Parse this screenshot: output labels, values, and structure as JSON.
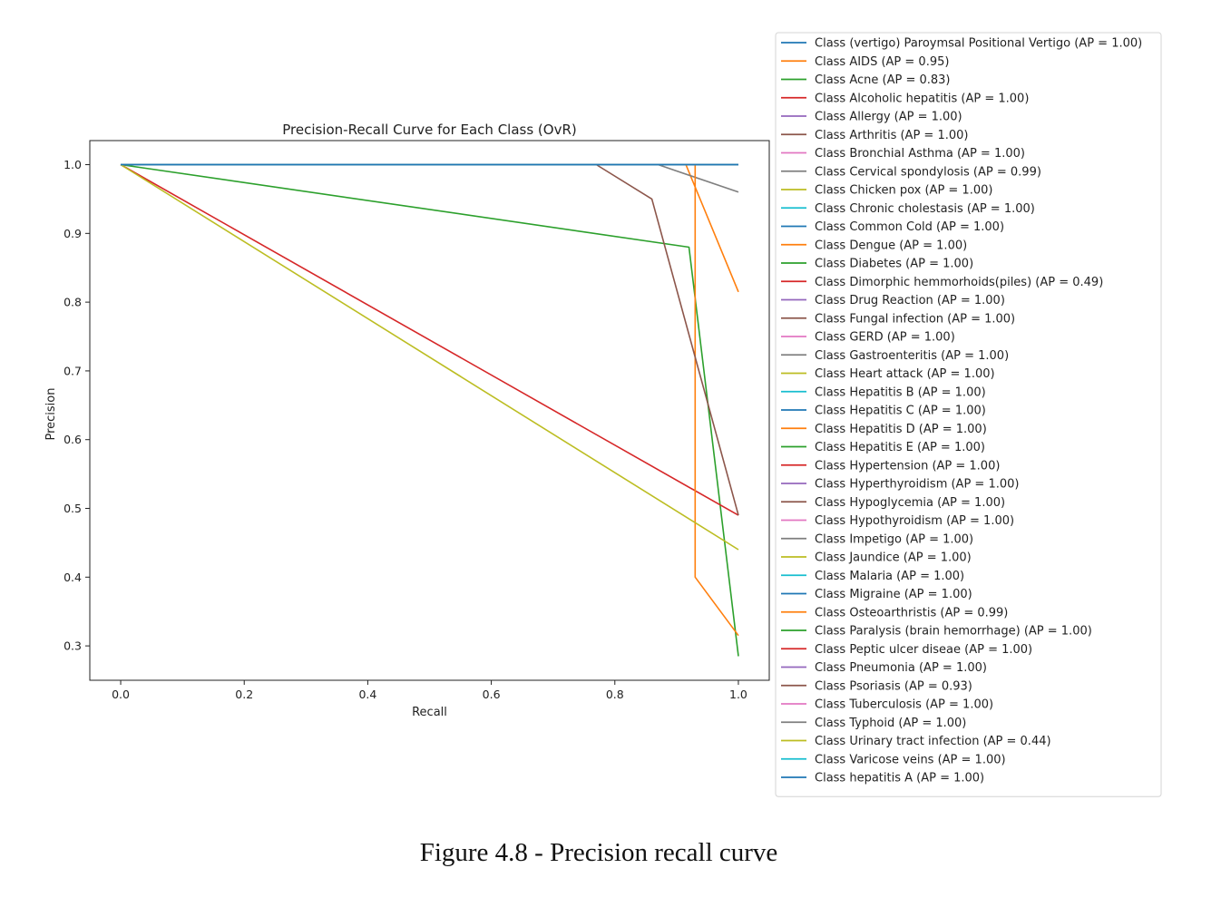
{
  "chart_data": {
    "type": "line",
    "title": "Precision-Recall Curve for Each Class (OvR)",
    "xlabel": "Recall",
    "ylabel": "Precision",
    "xlim": [
      -0.05,
      1.05
    ],
    "ylim": [
      0.25,
      1.035
    ],
    "xticks": [
      "0.0",
      "0.2",
      "0.4",
      "0.6",
      "0.8",
      "1.0"
    ],
    "yticks": [
      "0.3",
      "0.4",
      "0.5",
      "0.6",
      "0.7",
      "0.8",
      "0.9",
      "1.0"
    ],
    "grid": false,
    "legend_position": "right, outside plot",
    "colors": [
      "#1f77b4",
      "#ff7f0e",
      "#2ca02c",
      "#d62728",
      "#9467bd",
      "#8c564b",
      "#e377c2",
      "#7f7f7f",
      "#bcbd22",
      "#17becf"
    ],
    "series": [
      {
        "name": "Class (vertigo) Paroymsal  Positional Vertigo (AP = 1.00)",
        "x": [
          0,
          1
        ],
        "y": [
          1,
          1
        ]
      },
      {
        "name": "Class AIDS (AP = 0.95)",
        "x": [
          0,
          0.915,
          1
        ],
        "y": [
          1,
          1,
          0.815
        ]
      },
      {
        "name": "Class Acne (AP = 0.83)",
        "x": [
          0,
          0.92,
          1
        ],
        "y": [
          1,
          0.88,
          0.285
        ]
      },
      {
        "name": "Class Alcoholic hepatitis (AP = 1.00)",
        "x": [
          0,
          1
        ],
        "y": [
          1,
          1
        ]
      },
      {
        "name": "Class Allergy (AP = 1.00)",
        "x": [
          0,
          1
        ],
        "y": [
          1,
          1
        ]
      },
      {
        "name": "Class Arthritis (AP = 1.00)",
        "x": [
          0,
          1
        ],
        "y": [
          1,
          1
        ]
      },
      {
        "name": "Class Bronchial Asthma (AP = 1.00)",
        "x": [
          0,
          1
        ],
        "y": [
          1,
          1
        ]
      },
      {
        "name": "Class Cervical spondylosis (AP = 0.99)",
        "x": [
          0,
          0.87,
          1
        ],
        "y": [
          1,
          1,
          0.96
        ]
      },
      {
        "name": "Class Chicken pox (AP = 1.00)",
        "x": [
          0,
          1
        ],
        "y": [
          1,
          1
        ]
      },
      {
        "name": "Class Chronic cholestasis (AP = 1.00)",
        "x": [
          0,
          1
        ],
        "y": [
          1,
          1
        ]
      },
      {
        "name": "Class Common Cold (AP = 1.00)",
        "x": [
          0,
          1
        ],
        "y": [
          1,
          1
        ]
      },
      {
        "name": "Class Dengue (AP = 1.00)",
        "x": [
          0,
          1
        ],
        "y": [
          1,
          1
        ]
      },
      {
        "name": "Class Diabetes  (AP = 1.00)",
        "x": [
          0,
          1
        ],
        "y": [
          1,
          1
        ]
      },
      {
        "name": "Class Dimorphic hemmorhoids(piles) (AP = 0.49)",
        "x": [
          0,
          1
        ],
        "y": [
          1,
          0.49
        ]
      },
      {
        "name": "Class Drug Reaction (AP = 1.00)",
        "x": [
          0,
          1
        ],
        "y": [
          1,
          1
        ]
      },
      {
        "name": "Class Fungal infection (AP = 1.00)",
        "x": [
          0,
          1
        ],
        "y": [
          1,
          1
        ]
      },
      {
        "name": "Class GERD (AP = 1.00)",
        "x": [
          0,
          1
        ],
        "y": [
          1,
          1
        ]
      },
      {
        "name": "Class Gastroenteritis (AP = 1.00)",
        "x": [
          0,
          1
        ],
        "y": [
          1,
          1
        ]
      },
      {
        "name": "Class Heart attack (AP = 1.00)",
        "x": [
          0,
          1
        ],
        "y": [
          1,
          1
        ]
      },
      {
        "name": "Class Hepatitis B (AP = 1.00)",
        "x": [
          0,
          1
        ],
        "y": [
          1,
          1
        ]
      },
      {
        "name": "Class Hepatitis C (AP = 1.00)",
        "x": [
          0,
          1
        ],
        "y": [
          1,
          1
        ]
      },
      {
        "name": "Class Hepatitis D (AP = 1.00)",
        "x": [
          0,
          1
        ],
        "y": [
          1,
          1
        ]
      },
      {
        "name": "Class Hepatitis E (AP = 1.00)",
        "x": [
          0,
          1
        ],
        "y": [
          1,
          1
        ]
      },
      {
        "name": "Class Hypertension  (AP = 1.00)",
        "x": [
          0,
          1
        ],
        "y": [
          1,
          1
        ]
      },
      {
        "name": "Class Hyperthyroidism (AP = 1.00)",
        "x": [
          0,
          1
        ],
        "y": [
          1,
          1
        ]
      },
      {
        "name": "Class Hypoglycemia (AP = 1.00)",
        "x": [
          0,
          1
        ],
        "y": [
          1,
          1
        ]
      },
      {
        "name": "Class Hypothyroidism (AP = 1.00)",
        "x": [
          0,
          1
        ],
        "y": [
          1,
          1
        ]
      },
      {
        "name": "Class Impetigo (AP = 1.00)",
        "x": [
          0,
          1
        ],
        "y": [
          1,
          1
        ]
      },
      {
        "name": "Class Jaundice (AP = 1.00)",
        "x": [
          0,
          1
        ],
        "y": [
          1,
          1
        ]
      },
      {
        "name": "Class Malaria (AP = 1.00)",
        "x": [
          0,
          1
        ],
        "y": [
          1,
          1
        ]
      },
      {
        "name": "Class Migraine (AP = 1.00)",
        "x": [
          0,
          1
        ],
        "y": [
          1,
          1
        ]
      },
      {
        "name": "Class Osteoarthristis (AP = 0.99)",
        "x": [
          0,
          0.93,
          0.93,
          1
        ],
        "y": [
          1,
          1,
          0.4,
          0.315
        ]
      },
      {
        "name": "Class Paralysis (brain hemorrhage) (AP = 1.00)",
        "x": [
          0,
          1
        ],
        "y": [
          1,
          1
        ]
      },
      {
        "name": "Class Peptic ulcer diseae (AP = 1.00)",
        "x": [
          0,
          1
        ],
        "y": [
          1,
          1
        ]
      },
      {
        "name": "Class Pneumonia (AP = 1.00)",
        "x": [
          0,
          1
        ],
        "y": [
          1,
          1
        ]
      },
      {
        "name": "Class Psoriasis (AP = 0.93)",
        "x": [
          0,
          0.77,
          0.86,
          1
        ],
        "y": [
          1,
          1,
          0.95,
          0.49
        ]
      },
      {
        "name": "Class Tuberculosis (AP = 1.00)",
        "x": [
          0,
          1
        ],
        "y": [
          1,
          1
        ]
      },
      {
        "name": "Class Typhoid (AP = 1.00)",
        "x": [
          0,
          1
        ],
        "y": [
          1,
          1
        ]
      },
      {
        "name": "Class Urinary tract infection (AP = 0.44)",
        "x": [
          0,
          1
        ],
        "y": [
          1,
          0.44
        ]
      },
      {
        "name": "Class Varicose veins (AP = 1.00)",
        "x": [
          0,
          1
        ],
        "y": [
          1,
          1
        ]
      },
      {
        "name": "Class hepatitis A (AP = 1.00)",
        "x": [
          0,
          1
        ],
        "y": [
          1,
          1
        ]
      }
    ]
  },
  "caption": "Figure 4.8 - Precision recall curve"
}
